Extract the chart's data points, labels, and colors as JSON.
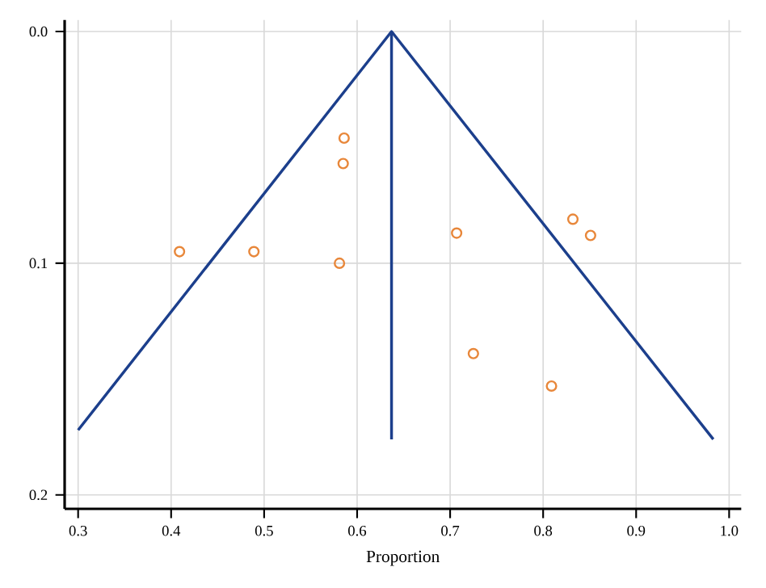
{
  "chart_data": {
    "type": "scatter",
    "xlabel": "Proportion",
    "xlim": [
      0.2855,
      1.013
    ],
    "ylim": [
      0.206,
      -0.005
    ],
    "xticks": [
      0.3,
      0.4,
      0.5,
      0.6,
      0.7,
      0.8,
      0.9,
      {
        "value": 1.0,
        "label": "1.0"
      }
    ],
    "yticks": [
      {
        "value": 0,
        "label": "0.0"
      },
      0.1,
      0.2
    ],
    "grid": true,
    "series": [
      {
        "type": "line",
        "color": "#1c3f8c",
        "x": [
          0.3,
          0.637,
          0.983
        ],
        "values": [
          0.172,
          0,
          0.176
        ],
        "marker": "none",
        "line_style": "solid"
      },
      {
        "type": "line",
        "color": "#1c3f8c",
        "x": [
          0.637,
          0.637
        ],
        "values": [
          0,
          0.176
        ],
        "marker": "none",
        "line_style": "solid"
      },
      {
        "color": "#e8873a",
        "marker": "circle",
        "x": [
          0.409,
          0.489,
          0.581,
          0.586,
          0.585,
          0.707,
          0.725,
          0.809,
          0.832,
          0.851
        ],
        "values": [
          0.095,
          0.095,
          0.1,
          0.046,
          0.057,
          0.087,
          0.139,
          0.153,
          0.081,
          0.088
        ]
      }
    ]
  }
}
